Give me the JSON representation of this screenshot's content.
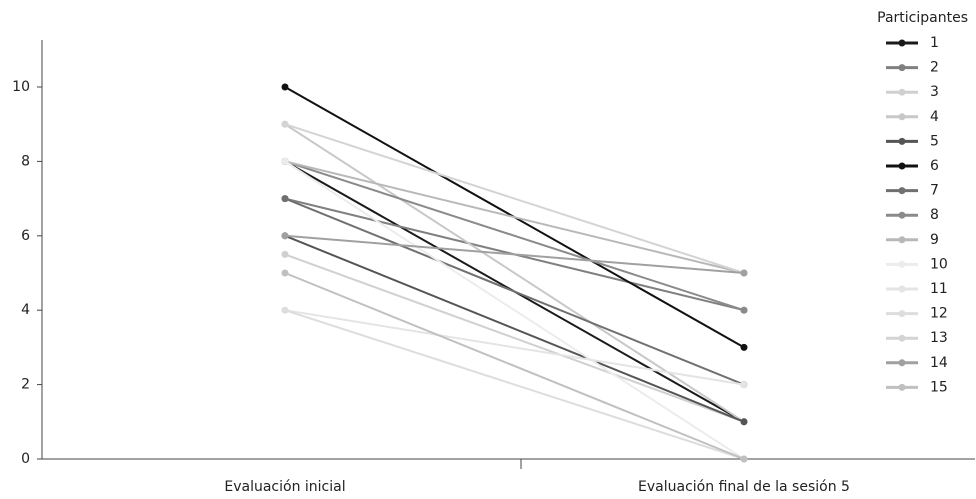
{
  "chart_data": {
    "type": "line",
    "categories": [
      "Evaluación inicial",
      "Evaluación final de la sesión 5"
    ],
    "legend_title": "Participantes",
    "series": [
      {
        "name": "1",
        "color": "#1a1a1a",
        "values": [
          8,
          1
        ]
      },
      {
        "name": "2",
        "color": "#808080",
        "values": [
          7,
          4
        ]
      },
      {
        "name": "3",
        "color": "#d0d0d0",
        "values": [
          5.5,
          1
        ]
      },
      {
        "name": "4",
        "color": "#c8c8c8",
        "values": [
          9,
          1
        ]
      },
      {
        "name": "5",
        "color": "#555555",
        "values": [
          6,
          1
        ]
      },
      {
        "name": "6",
        "color": "#111111",
        "values": [
          10,
          3
        ]
      },
      {
        "name": "7",
        "color": "#707070",
        "values": [
          7,
          2
        ]
      },
      {
        "name": "8",
        "color": "#8a8a8a",
        "values": [
          8,
          4
        ]
      },
      {
        "name": "9",
        "color": "#b8b8b8",
        "values": [
          8,
          5
        ]
      },
      {
        "name": "10",
        "color": "#ececec",
        "values": [
          8,
          0
        ]
      },
      {
        "name": "11",
        "color": "#e4e4e4",
        "values": [
          4,
          2
        ]
      },
      {
        "name": "12",
        "color": "#dddddd",
        "values": [
          4,
          0
        ]
      },
      {
        "name": "13",
        "color": "#d4d4d4",
        "values": [
          9,
          5
        ]
      },
      {
        "name": "14",
        "color": "#a0a0a0",
        "values": [
          6,
          5
        ]
      },
      {
        "name": "15",
        "color": "#c0c0c0",
        "values": [
          5,
          0
        ]
      }
    ],
    "ylim": [
      0,
      10
    ],
    "yticks": [
      0,
      2,
      4,
      6,
      8,
      10
    ],
    "grid": false
  }
}
